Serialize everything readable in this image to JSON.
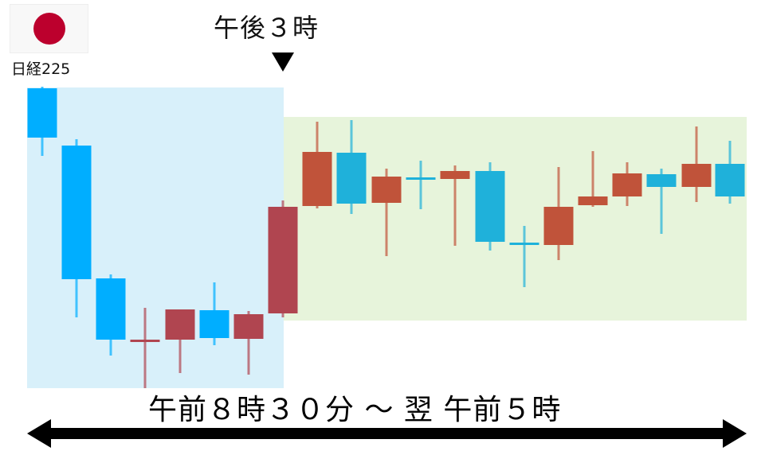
{
  "index": {
    "name": "日経225",
    "flag_icon": "japan-flag-icon",
    "flag_color": "#bc002d"
  },
  "marker": {
    "label": "午後３時",
    "icon": "down-triangle-icon"
  },
  "period": {
    "label": "午前８時３０分 ～ 翌 午前５時",
    "icon": "double-headed-arrow-icon"
  },
  "colors": {
    "day_session_bg": "#d8f0fa",
    "night_session_bg": "#e7f4db",
    "day_up": "#b04550",
    "day_down": "#00aeff",
    "night_up": "#c0533a",
    "night_down": "#1fb1da"
  }
}
